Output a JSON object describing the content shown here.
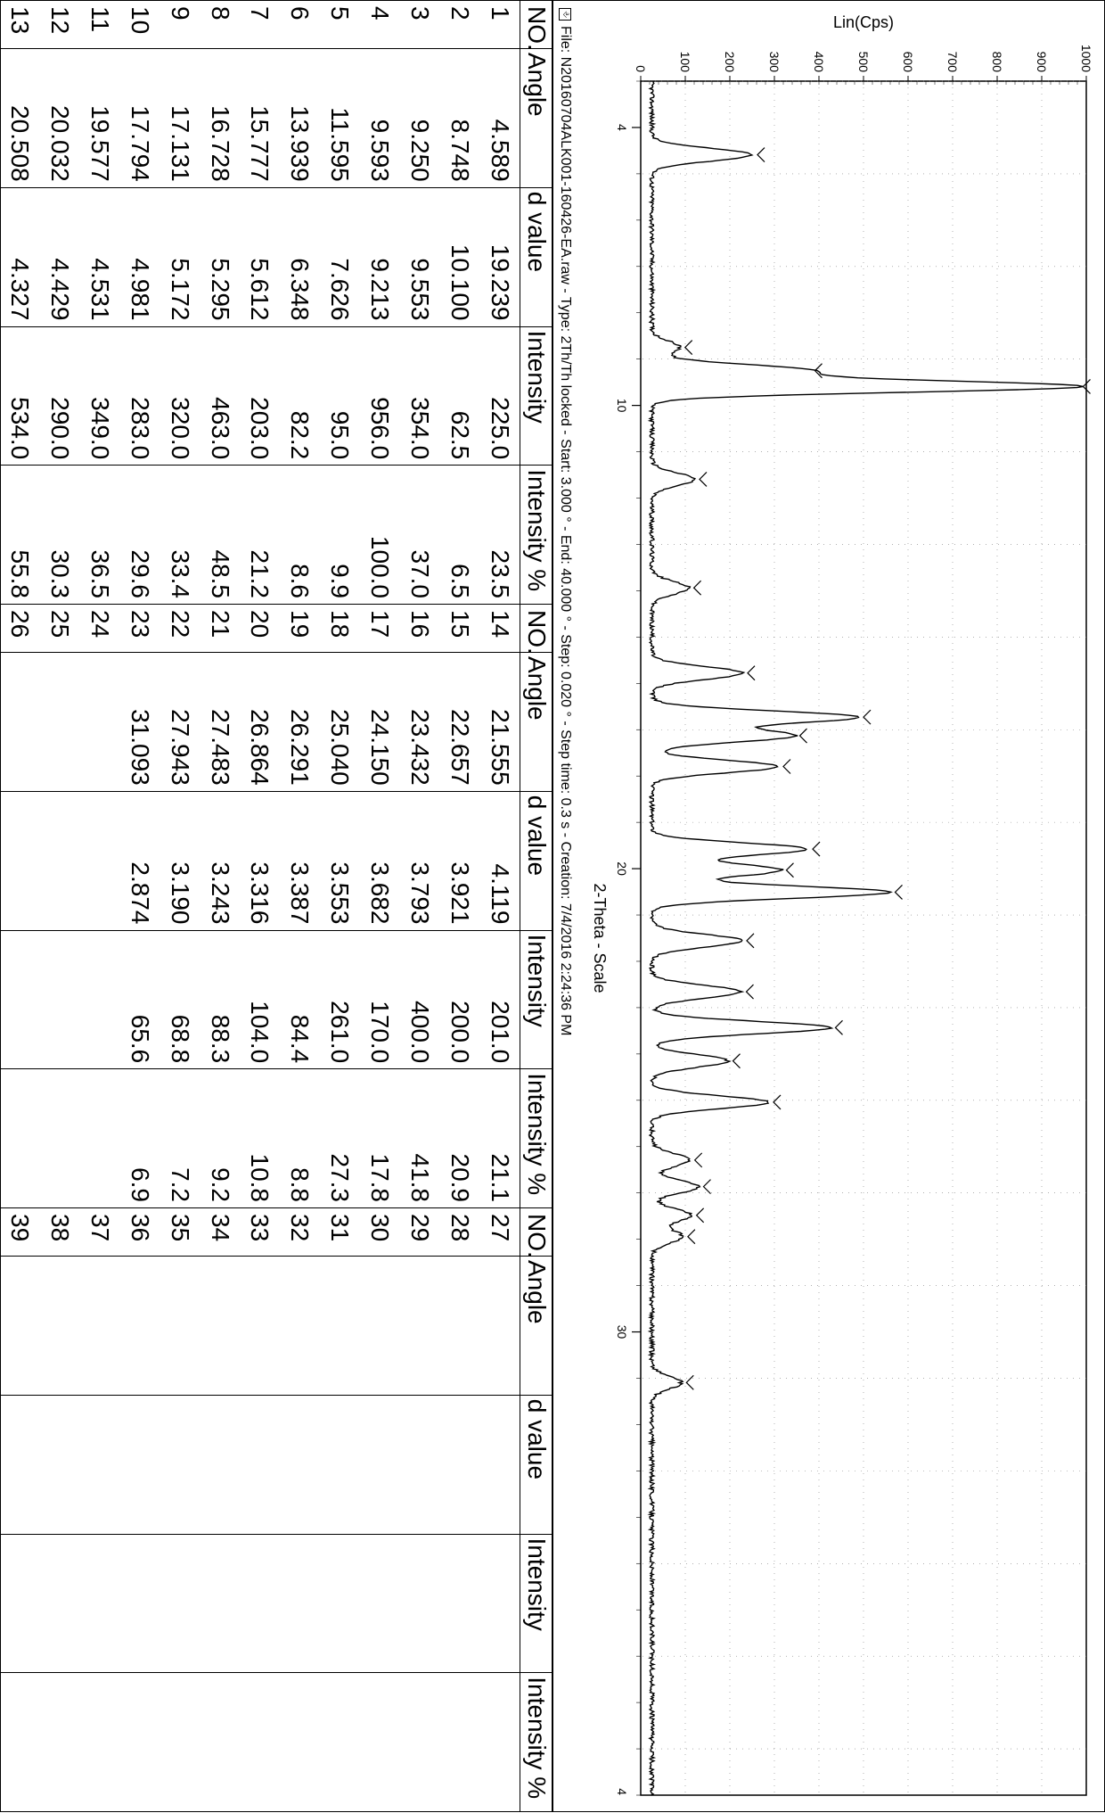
{
  "style": {
    "background_color": "#ffffff",
    "line_color": "#000000",
    "grid_color": "#b0b0b0",
    "text_color": "#000000",
    "font_family": "Arial",
    "table_fontsize": 28,
    "axis_label_fontsize": 18,
    "tick_fontsize": 14,
    "footer_fontsize": 16
  },
  "table": {
    "headers": [
      "NO.",
      "Angle",
      "d value",
      "Intensity",
      "Intensity %"
    ],
    "block1": [
      [
        "1",
        "4.589",
        "19.239",
        "225.0",
        "23.5"
      ],
      [
        "2",
        "8.748",
        "10.100",
        "62.5",
        "6.5"
      ],
      [
        "3",
        "9.250",
        "9.553",
        "354.0",
        "37.0"
      ],
      [
        "4",
        "9.593",
        "9.213",
        "956.0",
        "100.0"
      ],
      [
        "5",
        "11.595",
        "7.626",
        "95.0",
        "9.9"
      ],
      [
        "6",
        "13.939",
        "6.348",
        "82.2",
        "8.6"
      ],
      [
        "7",
        "15.777",
        "5.612",
        "203.0",
        "21.2"
      ],
      [
        "8",
        "16.728",
        "5.295",
        "463.0",
        "48.5"
      ],
      [
        "9",
        "17.131",
        "5.172",
        "320.0",
        "33.4"
      ],
      [
        "10",
        "17.794",
        "4.981",
        "283.0",
        "29.6"
      ],
      [
        "11",
        "19.577",
        "4.531",
        "349.0",
        "36.5"
      ],
      [
        "12",
        "20.032",
        "4.429",
        "290.0",
        "30.3"
      ],
      [
        "13",
        "20.508",
        "4.327",
        "534.0",
        "55.8"
      ]
    ],
    "block2": [
      [
        "14",
        "21.555",
        "4.119",
        "201.0",
        "21.1"
      ],
      [
        "15",
        "22.657",
        "3.921",
        "200.0",
        "20.9"
      ],
      [
        "16",
        "23.432",
        "3.793",
        "400.0",
        "41.8"
      ],
      [
        "17",
        "24.150",
        "3.682",
        "170.0",
        "17.8"
      ],
      [
        "18",
        "25.040",
        "3.553",
        "261.0",
        "27.3"
      ],
      [
        "19",
        "26.291",
        "3.387",
        "84.4",
        "8.8"
      ],
      [
        "20",
        "26.864",
        "3.316",
        "104.0",
        "10.8"
      ],
      [
        "21",
        "27.483",
        "3.243",
        "88.3",
        "9.2"
      ],
      [
        "22",
        "27.943",
        "3.190",
        "68.8",
        "7.2"
      ],
      [
        "23",
        "31.093",
        "2.874",
        "65.6",
        "6.9"
      ],
      [
        "24",
        "",
        "",
        "",
        ""
      ],
      [
        "25",
        "",
        "",
        "",
        ""
      ],
      [
        "26",
        "",
        "",
        "",
        ""
      ]
    ],
    "block3": [
      [
        "27",
        "",
        "",
        "",
        ""
      ],
      [
        "28",
        "",
        "",
        "",
        ""
      ],
      [
        "29",
        "",
        "",
        "",
        ""
      ],
      [
        "30",
        "",
        "",
        "",
        ""
      ],
      [
        "31",
        "",
        "",
        "",
        ""
      ],
      [
        "32",
        "",
        "",
        "",
        ""
      ],
      [
        "33",
        "",
        "",
        "",
        ""
      ],
      [
        "34",
        "",
        "",
        "",
        ""
      ],
      [
        "35",
        "",
        "",
        "",
        ""
      ],
      [
        "36",
        "",
        "",
        "",
        ""
      ],
      [
        "37",
        "",
        "",
        "",
        ""
      ],
      [
        "38",
        "",
        "",
        "",
        ""
      ],
      [
        "39",
        "",
        "",
        "",
        ""
      ]
    ]
  },
  "chart": {
    "type": "line",
    "title": "",
    "xlabel": "2-Theta - Scale",
    "ylabel": "Lin(Cps)",
    "xlim": [
      3,
      40
    ],
    "ylim": [
      0,
      1000
    ],
    "ytick_step": 100,
    "xtick_major": [
      4,
      10,
      20,
      30
    ],
    "xtick_minor_step": 1,
    "line_width": 1.4,
    "baseline": 25,
    "noise_amp": 10,
    "peaks": [
      {
        "angle": 4.589,
        "intensity": 225.0
      },
      {
        "angle": 8.748,
        "intensity": 62.5
      },
      {
        "angle": 9.25,
        "intensity": 354.0
      },
      {
        "angle": 9.593,
        "intensity": 956.0
      },
      {
        "angle": 11.595,
        "intensity": 95.0
      },
      {
        "angle": 13.939,
        "intensity": 82.2
      },
      {
        "angle": 15.777,
        "intensity": 203.0
      },
      {
        "angle": 16.728,
        "intensity": 463.0
      },
      {
        "angle": 17.131,
        "intensity": 320.0
      },
      {
        "angle": 17.794,
        "intensity": 283.0
      },
      {
        "angle": 19.577,
        "intensity": 349.0
      },
      {
        "angle": 20.032,
        "intensity": 290.0
      },
      {
        "angle": 20.508,
        "intensity": 534.0
      },
      {
        "angle": 21.555,
        "intensity": 201.0
      },
      {
        "angle": 22.657,
        "intensity": 200.0
      },
      {
        "angle": 23.432,
        "intensity": 400.0
      },
      {
        "angle": 24.15,
        "intensity": 170.0
      },
      {
        "angle": 25.04,
        "intensity": 261.0
      },
      {
        "angle": 26.291,
        "intensity": 84.4
      },
      {
        "angle": 26.864,
        "intensity": 104.0
      },
      {
        "angle": 27.483,
        "intensity": 88.3
      },
      {
        "angle": 27.943,
        "intensity": 68.8
      },
      {
        "angle": 31.093,
        "intensity": 65.6
      }
    ],
    "peak_marker": {
      "shape": "caret-down",
      "size": 8,
      "color": "#000000"
    },
    "grid": {
      "show": true,
      "style": "dotted",
      "color": "#808080"
    }
  },
  "footer": {
    "icon": "file-icon",
    "text": "File: N20160704ALK001-160426-EA.raw - Type: 2Th/Th locked - Start: 3.000 ° - End: 40.000 ° - Step: 0.020 ° - Step time: 0.3 s - Creation: 7/4/2016 2:24:36 PM"
  }
}
